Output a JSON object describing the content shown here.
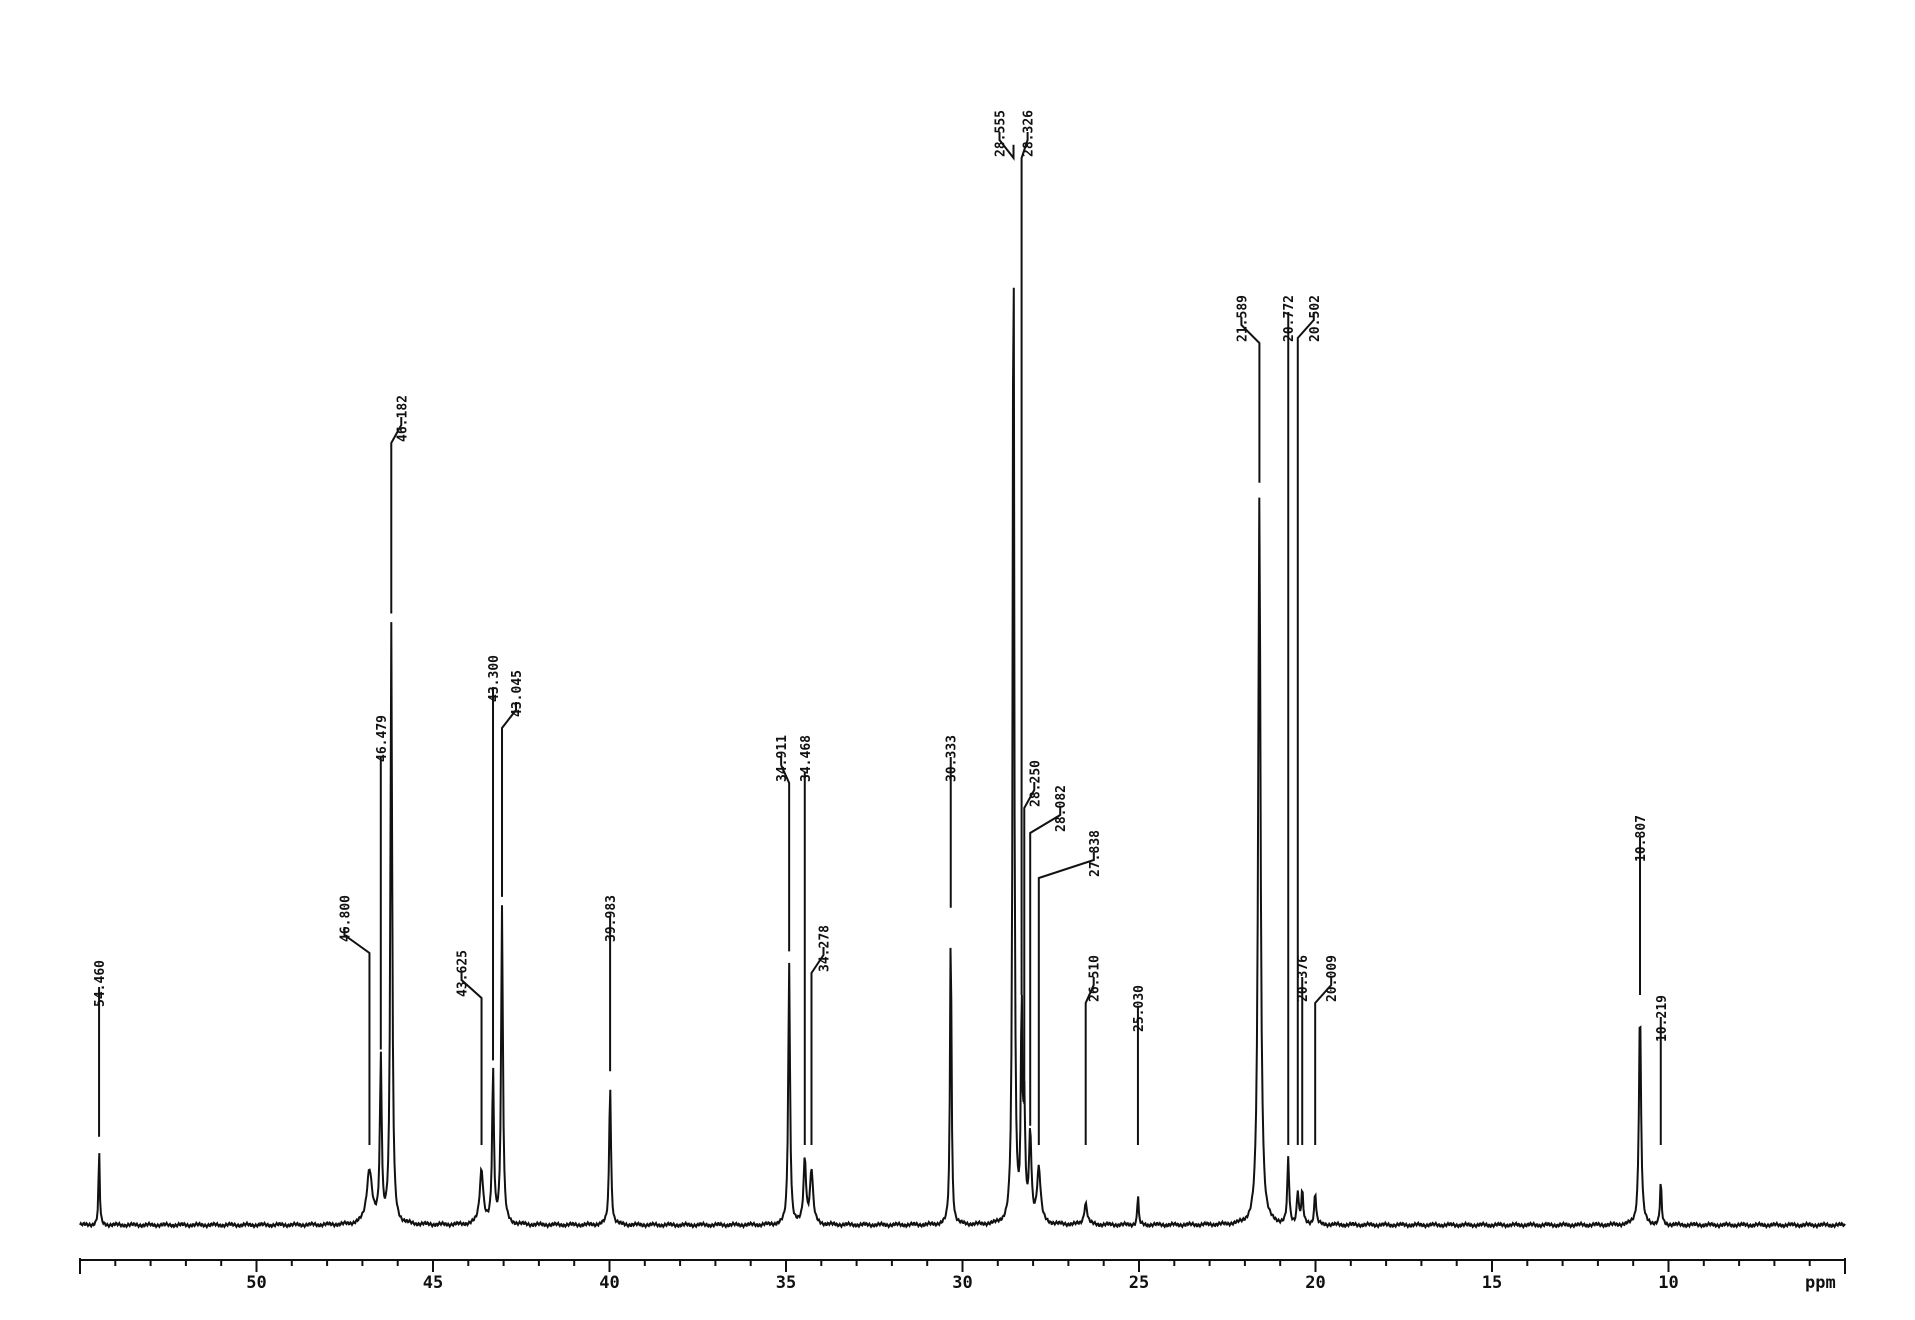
{
  "chart_data": {
    "type": "line",
    "title": "",
    "xlabel": "ppm",
    "ylabel": "",
    "xlim": [
      55.0,
      5.0
    ],
    "x_ticks": [
      {
        "value": 50,
        "label": "50"
      },
      {
        "value": 45,
        "label": "45"
      },
      {
        "value": 40,
        "label": "40"
      },
      {
        "value": 35,
        "label": "35"
      },
      {
        "value": 30,
        "label": "30"
      },
      {
        "value": 25,
        "label": "25"
      },
      {
        "value": 20,
        "label": "20"
      },
      {
        "value": 15,
        "label": "15"
      },
      {
        "value": 10,
        "label": "10"
      }
    ],
    "x_unit_label": "ppm",
    "grid": false,
    "legend": "none",
    "peaks": [
      {
        "shift": 54.46,
        "label": "54.460",
        "height": 0.07,
        "width": 0.04
      },
      {
        "shift": 46.8,
        "label": "46.800",
        "height": 0.05,
        "width": 0.18
      },
      {
        "shift": 46.479,
        "label": "46.479",
        "height": 0.15,
        "width": 0.06
      },
      {
        "shift": 46.182,
        "label": "46.182",
        "height": 0.55,
        "width": 0.06
      },
      {
        "shift": 43.625,
        "label": "43.625",
        "height": 0.05,
        "width": 0.12
      },
      {
        "shift": 43.3,
        "label": "43.300",
        "height": 0.14,
        "width": 0.06
      },
      {
        "shift": 43.045,
        "label": "43.045",
        "height": 0.29,
        "width": 0.06
      },
      {
        "shift": 39.983,
        "label": "39.983",
        "height": 0.13,
        "width": 0.06
      },
      {
        "shift": 34.911,
        "label": "34.911",
        "height": 0.24,
        "width": 0.06
      },
      {
        "shift": 34.468,
        "label": "34.468",
        "height": 0.06,
        "width": 0.08
      },
      {
        "shift": 34.278,
        "label": "34.278",
        "height": 0.05,
        "width": 0.1
      },
      {
        "shift": 30.333,
        "label": "30.333",
        "height": 0.28,
        "width": 0.05
      },
      {
        "shift": 28.555,
        "label": "28.555",
        "height": 0.98,
        "width": 0.05
      },
      {
        "shift": 28.326,
        "label": "28.326",
        "height": 0.2,
        "width": 0.05
      },
      {
        "shift": 28.25,
        "label": "28.250",
        "height": 0.1,
        "width": 0.06
      },
      {
        "shift": 28.082,
        "label": "28.082",
        "height": 0.08,
        "width": 0.08
      },
      {
        "shift": 27.838,
        "label": "27.838",
        "height": 0.05,
        "width": 0.12
      },
      {
        "shift": 26.51,
        "label": "26.510",
        "height": 0.02,
        "width": 0.1
      },
      {
        "shift": 25.03,
        "label": "25.030",
        "height": 0.03,
        "width": 0.04
      },
      {
        "shift": 21.589,
        "label": "21.589",
        "height": 0.67,
        "width": 0.08
      },
      {
        "shift": 20.772,
        "label": "20.772",
        "height": 0.06,
        "width": 0.06
      },
      {
        "shift": 20.502,
        "label": "20.502",
        "height": 0.03,
        "width": 0.06
      },
      {
        "shift": 20.376,
        "label": "20.376",
        "height": 0.03,
        "width": 0.06
      },
      {
        "shift": 20.009,
        "label": "20.009",
        "height": 0.03,
        "width": 0.06
      },
      {
        "shift": 10.807,
        "label": "10.807",
        "height": 0.2,
        "width": 0.07
      },
      {
        "shift": 10.219,
        "label": "10.219",
        "height": 0.04,
        "width": 0.05
      }
    ]
  }
}
